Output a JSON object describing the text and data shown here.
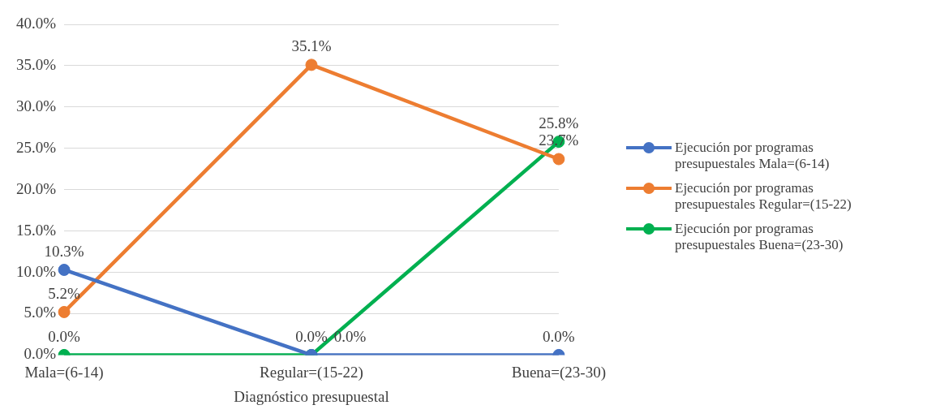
{
  "chart_data": {
    "type": "line",
    "xlabel": "Diagnóstico presupuestal",
    "categories": [
      "Mala=(6-14)",
      "Regular=(15-22)",
      "Buena=(23-30)"
    ],
    "series": [
      {
        "name": "Ejecución por programas presupuestales Mala=(6-14)",
        "color": "#4472c4",
        "values": [
          10.3,
          0,
          0
        ],
        "value_labels": [
          "10.3%",
          "0.0%",
          "0.0%"
        ]
      },
      {
        "name": "Ejecución por programas presupuestales Regular=(15-22)",
        "color": "#ed7d31",
        "values": [
          5.2,
          35.1,
          23.7
        ],
        "value_labels": [
          "5.2%",
          "35.1%",
          "23.7%"
        ]
      },
      {
        "name": "Ejecución por programas presupuestales Buena=(23-30)",
        "color": "#00b050",
        "values": [
          0,
          0,
          25.8
        ],
        "value_labels": [
          "0.0%",
          "0.0%",
          "25.8%"
        ]
      }
    ],
    "ylim": [
      0,
      40
    ],
    "yticks": [
      {
        "value": 0,
        "label": "0.0%"
      },
      {
        "value": 5,
        "label": "5.0%"
      },
      {
        "value": 10,
        "label": "10.0%"
      },
      {
        "value": 15,
        "label": "15.0%"
      },
      {
        "value": 20,
        "label": "20.0%"
      },
      {
        "value": 25,
        "label": "25.0%"
      },
      {
        "value": 30,
        "label": "30.0%"
      },
      {
        "value": 35,
        "label": "35.0%"
      },
      {
        "value": 40,
        "label": "40.0%"
      }
    ],
    "grid": "y",
    "legend": "right",
    "marker": "circle",
    "line_style": "solid"
  }
}
